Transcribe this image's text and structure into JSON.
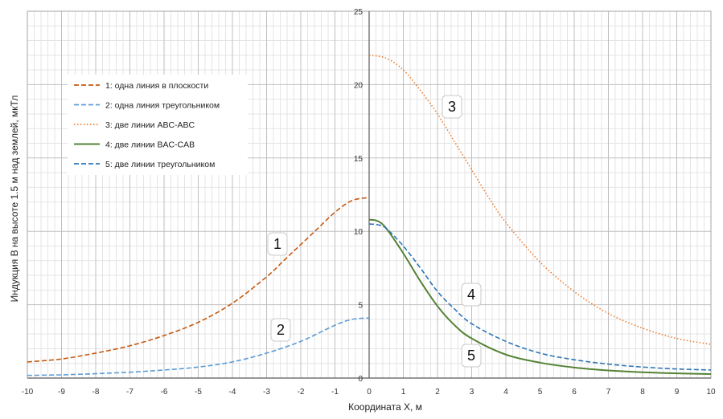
{
  "chart_data": {
    "type": "line",
    "xlabel": "Координата X, м",
    "ylabel": "Индукция В на высоте 1.5 м над землей, мкТл",
    "xlim": [
      -10,
      10
    ],
    "ylim": [
      0,
      25
    ],
    "x_ticks": [
      -10,
      -9,
      -8,
      -7,
      -6,
      -5,
      -4,
      -3,
      -2,
      -1,
      0,
      1,
      2,
      3,
      4,
      5,
      6,
      7,
      8,
      9,
      10
    ],
    "y_ticks": [
      0,
      5,
      10,
      15,
      20,
      25
    ],
    "grid": true,
    "legend_position": "top-left",
    "series": [
      {
        "name": "1: одна линия в плоскости",
        "label": "1",
        "color": "#c55a11",
        "style": "dashed",
        "x": [
          -10,
          -9,
          -8,
          -7,
          -6,
          -5,
          -4,
          -3,
          -2.5,
          -2,
          -1.5,
          -1,
          -0.5,
          0
        ],
        "y": [
          1.1,
          1.3,
          1.7,
          2.2,
          2.9,
          3.8,
          5.1,
          6.9,
          8.0,
          9.1,
          10.2,
          11.3,
          12.1,
          12.3
        ]
      },
      {
        "name": "2: одна линия треугольником",
        "label": "2",
        "color": "#5b9bd5",
        "style": "dashed",
        "x": [
          -10,
          -9,
          -8,
          -7,
          -6,
          -5,
          -4,
          -3,
          -2,
          -1,
          -0.5,
          0
        ],
        "y": [
          0.18,
          0.22,
          0.3,
          0.4,
          0.55,
          0.75,
          1.1,
          1.7,
          2.5,
          3.6,
          4.0,
          4.1
        ]
      },
      {
        "name": "3: две линии ABC-ABC",
        "label": "3",
        "color": "#ed7d31",
        "style": "dotted",
        "x": [
          0,
          0.5,
          1,
          1.5,
          2,
          2.5,
          3,
          3.5,
          4,
          5,
          6,
          7,
          8,
          9,
          10
        ],
        "y": [
          22.0,
          21.8,
          21.0,
          19.6,
          18.0,
          16.1,
          14.2,
          12.3,
          10.6,
          7.9,
          5.9,
          4.4,
          3.4,
          2.7,
          2.3
        ]
      },
      {
        "name": "4: две линии BAC-CAB",
        "label": "4",
        "color": "#548235",
        "style": "solid",
        "x": [
          0,
          0.25,
          0.5,
          1,
          1.5,
          2,
          2.5,
          3,
          4,
          5,
          6,
          7,
          8,
          9,
          10
        ],
        "y": [
          10.8,
          10.7,
          10.2,
          8.5,
          6.6,
          4.9,
          3.6,
          2.7,
          1.6,
          1.05,
          0.72,
          0.52,
          0.4,
          0.32,
          0.27
        ]
      },
      {
        "name": "5: две линии треугольником",
        "label": "5",
        "color": "#2e75b6",
        "style": "dashed",
        "x": [
          0,
          0.25,
          0.5,
          1,
          1.5,
          2,
          2.5,
          3,
          4,
          5,
          6,
          7,
          8,
          9,
          10
        ],
        "y": [
          10.5,
          10.45,
          10.2,
          9.0,
          7.5,
          5.9,
          4.7,
          3.7,
          2.5,
          1.7,
          1.25,
          0.95,
          0.75,
          0.62,
          0.55
        ]
      }
    ]
  }
}
